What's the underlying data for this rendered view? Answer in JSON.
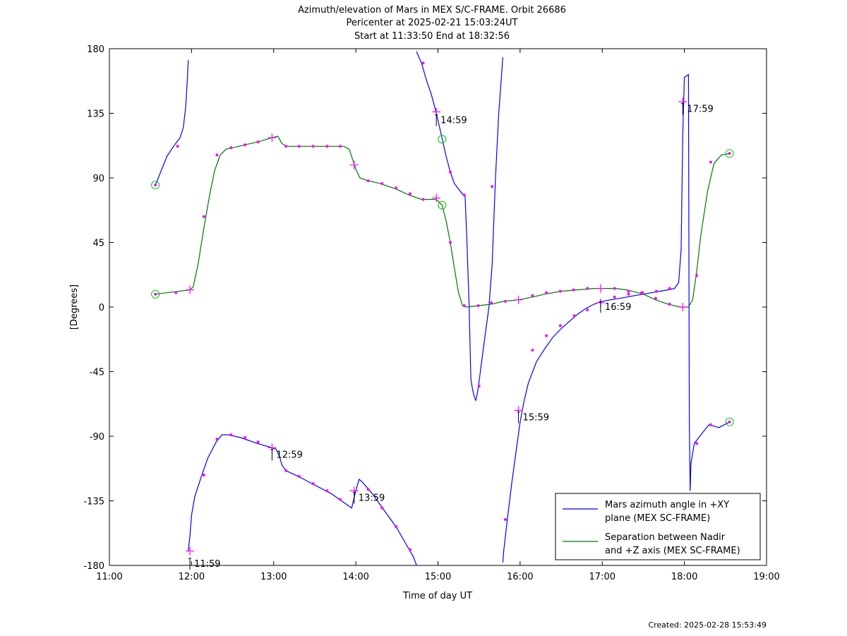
{
  "title_lines": [
    "Azimuth/elevation of Mars in MEX S/C-FRAME.  Orbit 26686",
    "Pericenter at 2025-02-21 15:03:24UT",
    "Start at 11:33:50 End at 18:32:56"
  ],
  "created": "Created: 2025-02-28 15:53:49",
  "colors": {
    "azimuth": "#0000ff",
    "separation": "#007700",
    "marker": "#ff00ff",
    "circle": "#00cc00",
    "axes": "#000000"
  },
  "chart_data": {
    "type": "line",
    "title": "Azimuth/elevation of Mars in MEX S/C-FRAME.  Orbit 26686",
    "xlabel": "Time of day UT",
    "ylabel": "[Degrees]",
    "x_unit": "hour of day",
    "xlim": [
      11,
      19
    ],
    "ylim": [
      -180,
      180
    ],
    "xticks": [
      11,
      12,
      13,
      14,
      15,
      16,
      17,
      18,
      19
    ],
    "xtick_labels": [
      "11:00",
      "12:00",
      "13:00",
      "14:00",
      "15:00",
      "16:00",
      "17:00",
      "18:00",
      "19:00"
    ],
    "yticks": [
      180,
      135,
      90,
      45,
      0,
      -45,
      -90,
      -135,
      -180
    ],
    "ytick_labels": [
      "180",
      "135",
      "90",
      "45",
      "0",
      "-45",
      "-90",
      "-135",
      "-180"
    ],
    "grid": false,
    "legend_position": "bottom-right",
    "legend_lines": [
      [
        "Mars azimuth angle in +XY",
        "plane (MEX SC-FRAME)"
      ],
      [
        "Separation between Nadir",
        "and +Z axis (MEX SC-FRAME)"
      ]
    ],
    "series": [
      {
        "name": "Mars azimuth angle in +XY plane (MEX SC-FRAME)",
        "segments": [
          [
            [
              11.56,
              85
            ],
            [
              11.7,
              105
            ],
            [
              11.78,
              112
            ],
            [
              11.86,
              118
            ],
            [
              11.9,
              125
            ],
            [
              11.93,
              140
            ],
            [
              11.95,
              160
            ],
            [
              11.96,
              172
            ]
          ],
          [
            [
              11.96,
              -170
            ],
            [
              11.98,
              -160
            ],
            [
              12.0,
              -145
            ],
            [
              12.04,
              -132
            ],
            [
              12.12,
              -118
            ],
            [
              12.2,
              -105
            ],
            [
              12.3,
              -94
            ],
            [
              12.37,
              -89
            ],
            [
              12.45,
              -89
            ],
            [
              12.6,
              -91
            ],
            [
              12.8,
              -95
            ],
            [
              12.98,
              -98
            ],
            [
              13.03,
              -99
            ],
            [
              13.07,
              -104
            ],
            [
              13.1,
              -110
            ],
            [
              13.15,
              -114
            ],
            [
              13.3,
              -118
            ],
            [
              13.5,
              -124
            ],
            [
              13.7,
              -130
            ],
            [
              13.8,
              -134
            ],
            [
              13.9,
              -138
            ],
            [
              13.95,
              -140
            ],
            [
              13.97,
              -135
            ],
            [
              14.0,
              -128
            ],
            [
              14.04,
              -120
            ],
            [
              14.08,
              -122
            ],
            [
              14.2,
              -130
            ],
            [
              14.3,
              -138
            ],
            [
              14.4,
              -146
            ],
            [
              14.5,
              -154
            ],
            [
              14.6,
              -164
            ],
            [
              14.7,
              -174
            ],
            [
              14.74,
              -180
            ]
          ],
          [
            [
              14.74,
              178
            ],
            [
              14.8,
              170
            ],
            [
              14.86,
              158
            ],
            [
              14.92,
              148
            ],
            [
              14.98,
              135
            ],
            [
              15.04,
              120
            ],
            [
              15.1,
              105
            ],
            [
              15.15,
              94
            ],
            [
              15.2,
              86
            ],
            [
              15.28,
              80
            ],
            [
              15.33,
              77
            ],
            [
              15.35,
              50
            ],
            [
              15.38,
              0
            ],
            [
              15.4,
              -50
            ],
            [
              15.42,
              -57
            ],
            [
              15.44,
              -62
            ],
            [
              15.46,
              -65
            ],
            [
              15.48,
              -60
            ],
            [
              15.5,
              -52
            ],
            [
              15.55,
              -30
            ],
            [
              15.62,
              0
            ],
            [
              15.66,
              30
            ],
            [
              15.7,
              90
            ],
            [
              15.74,
              135
            ],
            [
              15.79,
              174
            ]
          ],
          [
            [
              15.79,
              -178
            ],
            [
              15.8,
              -170
            ],
            [
              15.84,
              -150
            ],
            [
              15.9,
              -122
            ],
            [
              16.0,
              -80
            ],
            [
              16.05,
              -65
            ],
            [
              16.1,
              -53
            ],
            [
              16.2,
              -38
            ],
            [
              16.3,
              -29
            ],
            [
              16.4,
              -21
            ],
            [
              16.5,
              -15
            ],
            [
              16.6,
              -10
            ],
            [
              16.7,
              -5
            ],
            [
              16.8,
              -1
            ],
            [
              16.9,
              2
            ],
            [
              17.0,
              4
            ],
            [
              17.1,
              5
            ],
            [
              17.2,
              6
            ],
            [
              17.3,
              7
            ],
            [
              17.4,
              8
            ],
            [
              17.5,
              9
            ],
            [
              17.6,
              10
            ],
            [
              17.7,
              11
            ],
            [
              17.8,
              12
            ],
            [
              17.88,
              13
            ],
            [
              17.93,
              17
            ],
            [
              17.96,
              40
            ],
            [
              17.98,
              120
            ],
            [
              18.0,
              160
            ],
            [
              18.05,
              162
            ],
            [
              18.06,
              -80
            ],
            [
              18.07,
              -128
            ],
            [
              18.08,
              -109
            ],
            [
              18.12,
              -95
            ],
            [
              18.2,
              -89
            ],
            [
              18.3,
              -82
            ],
            [
              18.42,
              -84
            ],
            [
              18.55,
              -80
            ]
          ]
        ],
        "minute_markers": [
          [
            11.56,
            85
          ],
          [
            11.83,
            112
          ],
          [
            12.15,
            -117
          ],
          [
            12.31,
            -92
          ],
          [
            12.48,
            -89
          ],
          [
            12.65,
            -91
          ],
          [
            12.81,
            -94
          ],
          [
            13.15,
            -114
          ],
          [
            13.31,
            -118
          ],
          [
            13.48,
            -123
          ],
          [
            13.65,
            -128
          ],
          [
            13.81,
            -134
          ],
          [
            14.15,
            -127
          ],
          [
            14.32,
            -140
          ],
          [
            14.49,
            -153
          ],
          [
            14.66,
            -169
          ],
          [
            14.82,
            170
          ],
          [
            15.15,
            94
          ],
          [
            15.32,
            78
          ],
          [
            15.5,
            -55
          ],
          [
            15.66,
            84
          ],
          [
            15.82,
            -148
          ],
          [
            16.15,
            -30
          ],
          [
            16.32,
            -20
          ],
          [
            16.49,
            -13
          ],
          [
            16.66,
            -6
          ],
          [
            16.82,
            -2
          ],
          [
            17.15,
            7
          ],
          [
            17.32,
            9
          ],
          [
            17.49,
            10
          ],
          [
            17.66,
            11
          ],
          [
            17.82,
            13
          ],
          [
            18.15,
            -95
          ],
          [
            18.32,
            -82
          ],
          [
            18.55,
            -80
          ]
        ],
        "hour_markers": [
          [
            11.98,
            -170
          ],
          [
            12.98,
            -98
          ],
          [
            13.98,
            -128
          ],
          [
            14.98,
            136
          ],
          [
            15.98,
            -72
          ],
          [
            16.98,
            3
          ],
          [
            17.98,
            143
          ]
        ],
        "end_circles": [
          [
            11.56,
            85
          ],
          [
            18.55,
            -80
          ]
        ]
      },
      {
        "name": "Separation between Nadir and +Z axis (MEX SC-FRAME)",
        "segments": [
          [
            [
              11.56,
              9
            ],
            [
              11.7,
              10
            ],
            [
              11.85,
              11
            ],
            [
              11.98,
              12
            ],
            [
              12.02,
              14
            ],
            [
              12.08,
              30
            ],
            [
              12.15,
              55
            ],
            [
              12.22,
              78
            ],
            [
              12.28,
              95
            ],
            [
              12.35,
              106
            ],
            [
              12.42,
              110
            ],
            [
              12.5,
              111
            ],
            [
              12.65,
              113
            ],
            [
              12.8,
              115
            ],
            [
              12.98,
              118
            ],
            [
              13.05,
              119
            ],
            [
              13.1,
              114
            ],
            [
              13.15,
              112
            ],
            [
              13.3,
              112
            ],
            [
              13.5,
              112
            ],
            [
              13.7,
              112
            ],
            [
              13.85,
              112
            ],
            [
              13.92,
              110
            ],
            [
              13.96,
              103
            ],
            [
              14.0,
              96
            ],
            [
              14.05,
              90
            ],
            [
              14.15,
              88
            ],
            [
              14.3,
              86
            ],
            [
              14.5,
              82
            ],
            [
              14.65,
              78
            ],
            [
              14.8,
              75
            ],
            [
              14.98,
              75
            ],
            [
              15.05,
              71
            ],
            [
              15.1,
              60
            ],
            [
              15.15,
              45
            ],
            [
              15.2,
              27
            ],
            [
              15.25,
              10
            ],
            [
              15.3,
              1
            ],
            [
              15.35,
              0
            ],
            [
              15.5,
              1
            ],
            [
              15.65,
              2
            ],
            [
              15.8,
              4
            ],
            [
              15.98,
              5
            ],
            [
              16.15,
              7
            ],
            [
              16.3,
              9
            ],
            [
              16.5,
              11
            ],
            [
              16.7,
              12
            ],
            [
              16.9,
              13
            ],
            [
              17.0,
              13
            ],
            [
              17.15,
              13
            ],
            [
              17.3,
              12
            ],
            [
              17.5,
              9
            ],
            [
              17.65,
              5
            ],
            [
              17.8,
              2
            ],
            [
              17.95,
              0
            ],
            [
              18.05,
              0
            ],
            [
              18.1,
              5
            ],
            [
              18.15,
              25
            ],
            [
              18.2,
              50
            ],
            [
              18.28,
              80
            ],
            [
              18.36,
              100
            ],
            [
              18.45,
              106
            ],
            [
              18.55,
              107
            ]
          ]
        ],
        "minute_markers": [
          [
            11.56,
            9
          ],
          [
            11.81,
            10
          ],
          [
            12.15,
            63
          ],
          [
            12.31,
            106
          ],
          [
            12.48,
            111
          ],
          [
            12.65,
            113
          ],
          [
            12.81,
            115
          ],
          [
            13.15,
            112
          ],
          [
            13.31,
            112
          ],
          [
            13.48,
            112
          ],
          [
            13.65,
            112
          ],
          [
            13.81,
            112
          ],
          [
            14.15,
            88
          ],
          [
            14.32,
            86
          ],
          [
            14.49,
            83
          ],
          [
            14.66,
            79
          ],
          [
            14.82,
            75
          ],
          [
            15.15,
            45
          ],
          [
            15.32,
            1
          ],
          [
            15.49,
            1
          ],
          [
            15.65,
            3
          ],
          [
            15.82,
            4
          ],
          [
            16.15,
            8
          ],
          [
            16.32,
            10
          ],
          [
            16.49,
            11
          ],
          [
            16.65,
            12
          ],
          [
            16.82,
            13
          ],
          [
            17.15,
            13
          ],
          [
            17.32,
            11
          ],
          [
            17.48,
            10
          ],
          [
            17.65,
            6
          ],
          [
            17.82,
            2
          ],
          [
            18.15,
            22
          ],
          [
            18.32,
            101
          ],
          [
            18.55,
            107
          ]
        ],
        "hour_markers": [
          [
            11.98,
            12
          ],
          [
            12.98,
            118
          ],
          [
            13.98,
            99
          ],
          [
            14.98,
            76
          ],
          [
            15.98,
            5
          ],
          [
            16.98,
            13
          ],
          [
            17.98,
            0
          ]
        ],
        "end_circles": [
          [
            11.56,
            9
          ],
          [
            15.05,
            117
          ],
          [
            15.05,
            71
          ],
          [
            18.55,
            107
          ]
        ]
      }
    ],
    "annotations": [
      {
        "text": "11:59",
        "x": 11.98,
        "y": -180
      },
      {
        "text": "12:59",
        "x": 12.98,
        "y": -104
      },
      {
        "text": "13:59",
        "x": 13.98,
        "y": -134
      },
      {
        "text": "14:59",
        "x": 14.98,
        "y": 129
      },
      {
        "text": "15:59",
        "x": 15.98,
        "y": -78
      },
      {
        "text": "16:59",
        "x": 16.98,
        "y": -1
      },
      {
        "text": "17:59",
        "x": 17.98,
        "y": 137
      }
    ]
  }
}
